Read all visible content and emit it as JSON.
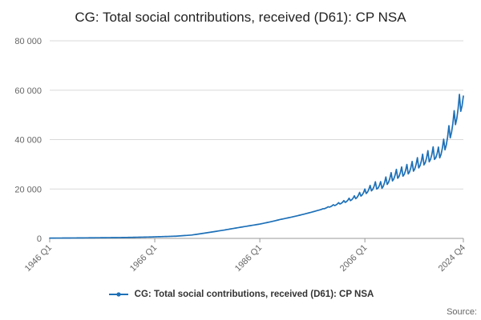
{
  "title": "CG: Total social contributions, received (D61): CP NSA",
  "source_label": "Source:",
  "legend": {
    "label": "CG: Total social contributions, received (D61): CP NSA"
  },
  "chart_data": {
    "type": "line",
    "title": "CG: Total social contributions, received (D61): CP NSA",
    "xlabel": "",
    "ylabel": "",
    "grid": true,
    "legend_position": "bottom",
    "ylim": [
      0,
      80000
    ],
    "y_ticks": [
      {
        "value": 0,
        "label": "0"
      },
      {
        "value": 20000,
        "label": "20 000"
      },
      {
        "value": 40000,
        "label": "40 000"
      },
      {
        "value": 60000,
        "label": "60 000"
      },
      {
        "value": 80000,
        "label": "80 000"
      }
    ],
    "x_ticks": [
      {
        "year": 1946.0,
        "label": "1946 Q1"
      },
      {
        "year": 1966.0,
        "label": "1966 Q1"
      },
      {
        "year": 1986.0,
        "label": "1986 Q1"
      },
      {
        "year": 2006.0,
        "label": "2006 Q1"
      },
      {
        "year": 2024.75,
        "label": "2024 Q4"
      }
    ],
    "series": [
      {
        "name": "CG: Total social contributions, received (D61): CP NSA",
        "frequency": "quarterly",
        "x_range_years": [
          1946.0,
          2024.75
        ],
        "anchors_year_value": [
          [
            1946,
            120
          ],
          [
            1950,
            170
          ],
          [
            1955,
            260
          ],
          [
            1960,
            360
          ],
          [
            1965,
            560
          ],
          [
            1970,
            900
          ],
          [
            1973,
            1350
          ],
          [
            1976,
            2300
          ],
          [
            1979,
            3300
          ],
          [
            1982,
            4400
          ],
          [
            1984,
            5100
          ],
          [
            1986,
            5800
          ],
          [
            1988,
            6700
          ],
          [
            1990,
            7700
          ],
          [
            1992,
            8600
          ],
          [
            1994,
            9600
          ],
          [
            1996,
            10700
          ],
          [
            1998,
            11900
          ],
          [
            2000,
            13300
          ],
          [
            2002,
            14700
          ],
          [
            2004,
            16300
          ],
          [
            2006,
            18600
          ],
          [
            2007,
            19800
          ],
          [
            2008,
            21000
          ],
          [
            2009,
            20900
          ],
          [
            2010,
            22600
          ],
          [
            2011,
            24200
          ],
          [
            2012,
            25400
          ],
          [
            2013,
            26300
          ],
          [
            2014,
            27200
          ],
          [
            2015,
            28300
          ],
          [
            2016,
            29700
          ],
          [
            2017,
            31000
          ],
          [
            2018,
            32300
          ],
          [
            2019,
            33700
          ],
          [
            2020,
            33600
          ],
          [
            2021,
            36500
          ],
          [
            2022,
            41500
          ],
          [
            2023,
            47000
          ],
          [
            2024,
            53000
          ],
          [
            2024.75,
            56500
          ]
        ],
        "seasonal_pattern_by_quarter": [
          0.1,
          -0.05,
          -0.03,
          0.02
        ],
        "seasonal_ramp_years": [
          1997,
          2009
        ]
      }
    ],
    "colors": {
      "line": "#1d70b8",
      "grid": "#d9d9d9",
      "axis": "#999999",
      "tick_text": "#666666",
      "title_text": "#222222",
      "legend_text": "#333333"
    }
  }
}
